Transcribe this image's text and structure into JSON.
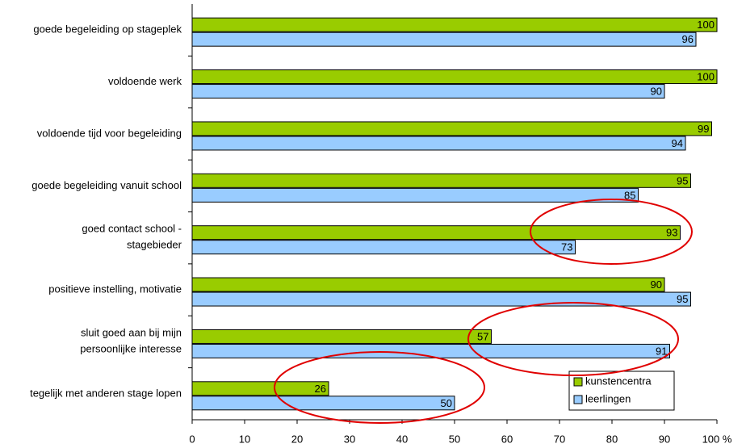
{
  "chart_data": {
    "type": "hbar",
    "categories": [
      "goede begeleiding op stageplek",
      "voldoende werk",
      "voldoende tijd voor begeleiding",
      "goede begeleiding vanuit school",
      "goed contact school - stagebieder",
      "positieve instelling, motivatie",
      "sluit goed aan bij mijn persoonlijke interesse",
      "tegelijk met anderen stage lopen"
    ],
    "series": [
      {
        "name": "kunstencentra",
        "color": "#99cc00",
        "values": [
          100,
          100,
          99,
          95,
          93,
          90,
          57,
          26
        ]
      },
      {
        "name": "leerlingen",
        "color": "#99ccff",
        "values": [
          96,
          90,
          94,
          85,
          73,
          95,
          91,
          50
        ]
      }
    ],
    "xlim": [
      0,
      100
    ],
    "xticks": [
      0,
      10,
      20,
      30,
      40,
      50,
      60,
      70,
      80,
      90,
      {
        "value": 100,
        "label": "100 %"
      }
    ],
    "legend": "lower right"
  }
}
